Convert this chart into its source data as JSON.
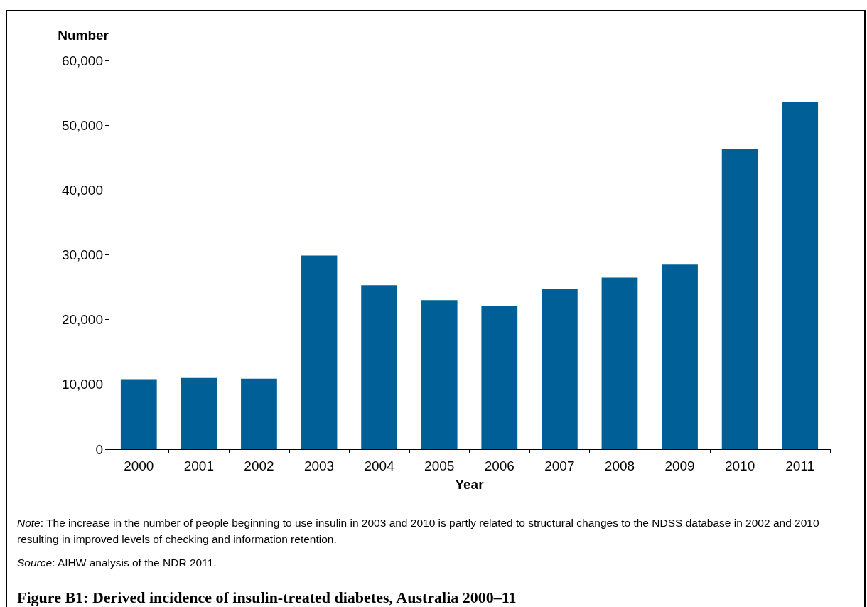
{
  "chart_data": {
    "type": "bar",
    "title": "Figure B1: Derived incidence of insulin-treated diabetes, Australia 2000–11",
    "xlabel": "Year",
    "ylabel": "Number",
    "categories": [
      "2000",
      "2001",
      "2002",
      "2003",
      "2004",
      "2005",
      "2006",
      "2007",
      "2008",
      "2009",
      "2010",
      "2011"
    ],
    "values": [
      10800,
      11000,
      10900,
      29900,
      25300,
      23000,
      22100,
      24700,
      26500,
      28500,
      46300,
      53600
    ],
    "color": "#005f96",
    "ylim": [
      0,
      60000
    ],
    "yticks": [
      0,
      {
        "value": 10000,
        "label": "10,000"
      },
      {
        "value": 20000,
        "label": "20,000"
      },
      {
        "value": 30000,
        "label": "30,000"
      },
      {
        "value": 40000,
        "label": "40,000"
      },
      {
        "value": 50000,
        "label": "50,000"
      },
      {
        "value": 60000,
        "label": "60,000"
      }
    ],
    "grid": false,
    "annotations": [
      "Note: The increase in the number of people beginning to use insulin in 2003 and 2010 is partly related to structural changes to the NDSS database in 2002 and 2010 resulting in improved levels of checking and information retention.",
      "Source: AIHW analysis of the NDR 2011."
    ]
  }
}
